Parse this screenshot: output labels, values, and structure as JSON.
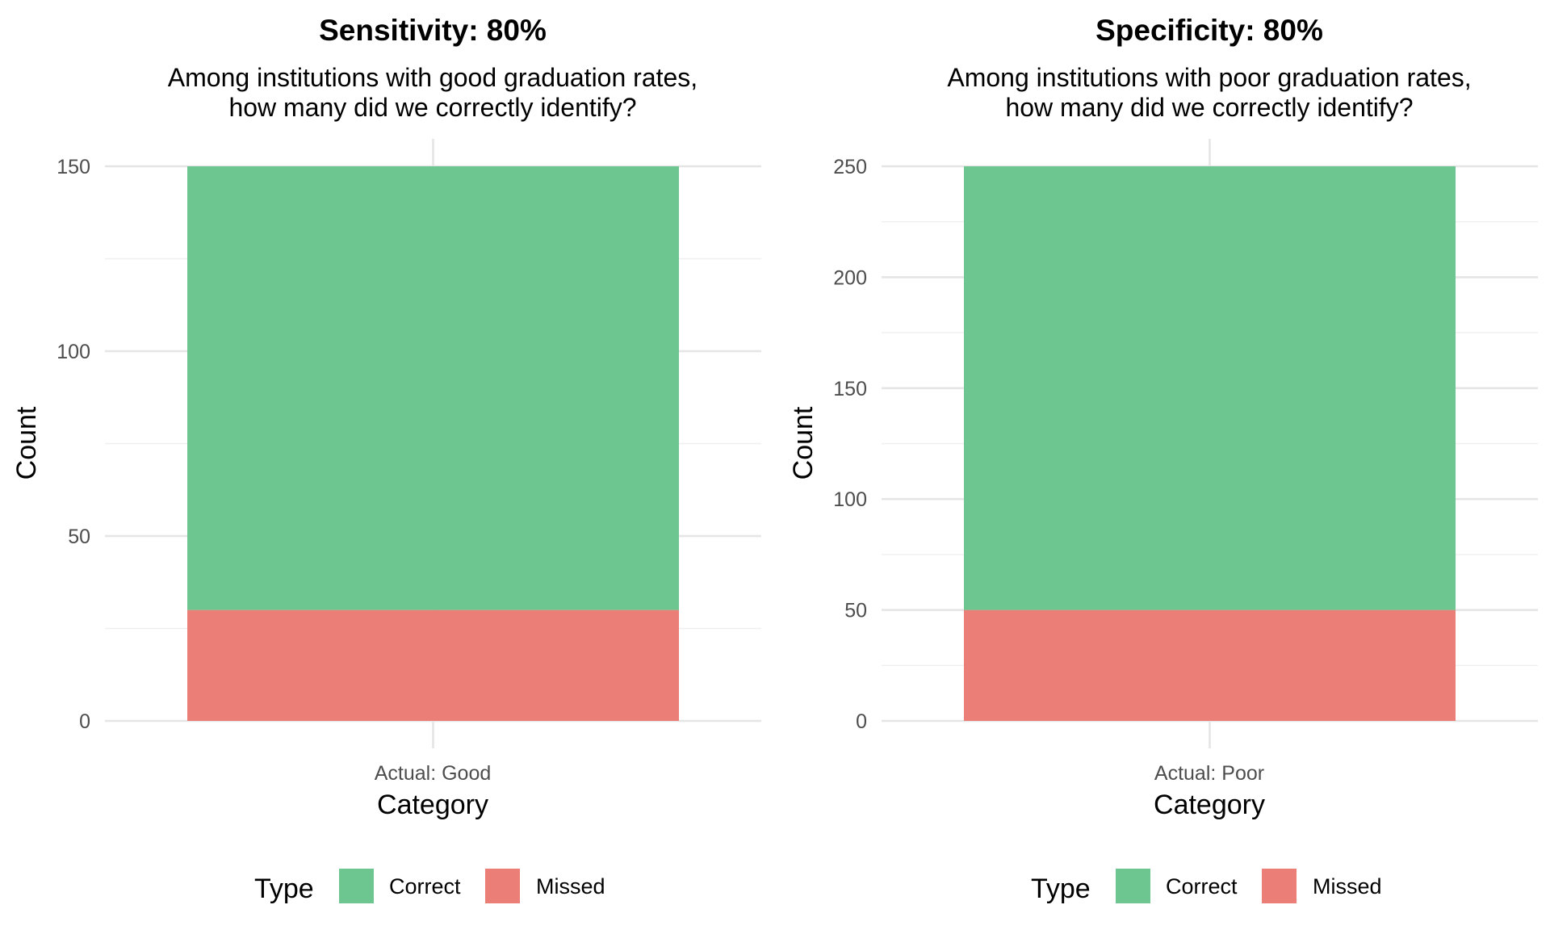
{
  "colors": {
    "correct": "#6dc690",
    "missed": "#eb7e76",
    "grid_major": "#e5e5e5",
    "grid_minor": "#efefef",
    "tick_text": "#4d4d4d"
  },
  "chart_data": [
    {
      "type": "bar",
      "stacked": true,
      "title": "Sensitivity: 80%",
      "subtitle_lines": [
        "Among institutions with good graduation rates,",
        "how many did we correctly identify?"
      ],
      "categories": [
        "Actual: Good"
      ],
      "series": [
        {
          "name": "Missed",
          "values": [
            30
          ]
        },
        {
          "name": "Correct",
          "values": [
            120
          ]
        }
      ],
      "xlabel": "Category",
      "ylabel": "Count",
      "ylim": [
        0,
        150
      ],
      "yticks": [
        0,
        50,
        100,
        150
      ],
      "yminor": [
        25,
        75,
        125
      ],
      "legend": {
        "title": "Type",
        "position": "bottom",
        "entries": [
          "Correct",
          "Missed"
        ]
      }
    },
    {
      "type": "bar",
      "stacked": true,
      "title": "Specificity: 80%",
      "subtitle_lines": [
        "Among institutions with poor graduation rates,",
        "how many did we correctly identify?"
      ],
      "categories": [
        "Actual: Poor"
      ],
      "series": [
        {
          "name": "Missed",
          "values": [
            50
          ]
        },
        {
          "name": "Correct",
          "values": [
            200
          ]
        }
      ],
      "xlabel": "Category",
      "ylabel": "Count",
      "ylim": [
        0,
        250
      ],
      "yticks": [
        0,
        50,
        100,
        150,
        200,
        250
      ],
      "yminor": [
        25,
        75,
        125,
        175,
        225
      ],
      "legend": {
        "title": "Type",
        "position": "bottom",
        "entries": [
          "Correct",
          "Missed"
        ]
      }
    }
  ]
}
